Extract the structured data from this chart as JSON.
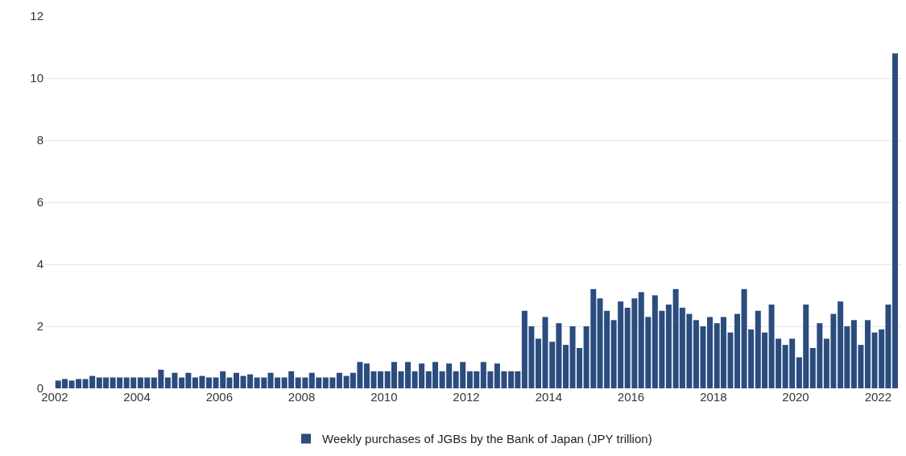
{
  "chart_data": {
    "type": "bar",
    "x": [
      "2002-02",
      "2002-04",
      "2002-06",
      "2002-08",
      "2002-10",
      "2002-12",
      "2003-02",
      "2003-04",
      "2003-06",
      "2003-08",
      "2003-10",
      "2003-12",
      "2004-02",
      "2004-04",
      "2004-06",
      "2004-08",
      "2004-10",
      "2004-12",
      "2005-02",
      "2005-04",
      "2005-06",
      "2005-08",
      "2005-10",
      "2005-12",
      "2006-02",
      "2006-04",
      "2006-06",
      "2006-08",
      "2006-10",
      "2006-12",
      "2007-02",
      "2007-04",
      "2007-06",
      "2007-08",
      "2007-10",
      "2007-12",
      "2008-02",
      "2008-04",
      "2008-06",
      "2008-08",
      "2008-10",
      "2008-12",
      "2009-02",
      "2009-04",
      "2009-06",
      "2009-08",
      "2009-10",
      "2009-12",
      "2010-02",
      "2010-04",
      "2010-06",
      "2010-08",
      "2010-10",
      "2010-12",
      "2011-02",
      "2011-04",
      "2011-06",
      "2011-08",
      "2011-10",
      "2011-12",
      "2012-02",
      "2012-04",
      "2012-06",
      "2012-08",
      "2012-10",
      "2012-12",
      "2013-02",
      "2013-04",
      "2013-06",
      "2013-08",
      "2013-10",
      "2013-12",
      "2014-02",
      "2014-04",
      "2014-06",
      "2014-08",
      "2014-10",
      "2014-12",
      "2015-02",
      "2015-04",
      "2015-06",
      "2015-08",
      "2015-10",
      "2015-12",
      "2016-02",
      "2016-04",
      "2016-06",
      "2016-08",
      "2016-10",
      "2016-12",
      "2017-02",
      "2017-04",
      "2017-06",
      "2017-08",
      "2017-10",
      "2017-12",
      "2018-02",
      "2018-04",
      "2018-06",
      "2018-08",
      "2018-10",
      "2018-12",
      "2019-02",
      "2019-04",
      "2019-06",
      "2019-08",
      "2019-10",
      "2019-12",
      "2020-02",
      "2020-04",
      "2020-06",
      "2020-08",
      "2020-10",
      "2020-12",
      "2021-02",
      "2021-04",
      "2021-06",
      "2021-08",
      "2021-10",
      "2021-12",
      "2022-02",
      "2022-04",
      "2022-06"
    ],
    "series": [
      {
        "name": "Weekly purchases of JGBs by the Bank of Japan (JPY trillion)",
        "color": "#2b4c7e",
        "values": [
          0.25,
          0.3,
          0.25,
          0.3,
          0.3,
          0.4,
          0.35,
          0.35,
          0.35,
          0.35,
          0.35,
          0.35,
          0.35,
          0.35,
          0.35,
          0.6,
          0.35,
          0.5,
          0.35,
          0.5,
          0.35,
          0.4,
          0.35,
          0.35,
          0.55,
          0.35,
          0.5,
          0.4,
          0.45,
          0.35,
          0.35,
          0.5,
          0.35,
          0.35,
          0.55,
          0.35,
          0.35,
          0.5,
          0.35,
          0.35,
          0.35,
          0.5,
          0.4,
          0.5,
          0.85,
          0.8,
          0.55,
          0.55,
          0.55,
          0.85,
          0.55,
          0.85,
          0.55,
          0.8,
          0.55,
          0.85,
          0.55,
          0.8,
          0.55,
          0.85,
          0.55,
          0.55,
          0.85,
          0.55,
          0.8,
          0.55,
          0.55,
          0.55,
          2.5,
          2.0,
          1.6,
          2.3,
          1.5,
          2.1,
          1.4,
          2.0,
          1.3,
          2.0,
          3.2,
          2.9,
          2.5,
          2.2,
          2.8,
          2.6,
          2.9,
          3.1,
          2.3,
          3.0,
          2.5,
          2.7,
          3.2,
          2.6,
          2.4,
          2.2,
          2.0,
          2.3,
          2.1,
          2.3,
          1.8,
          2.4,
          3.2,
          1.9,
          2.5,
          1.8,
          2.7,
          1.6,
          1.4,
          1.6,
          1.0,
          2.7,
          1.3,
          2.1,
          1.6,
          2.4,
          2.8,
          2.0,
          2.2,
          1.4,
          2.2,
          1.8,
          1.9,
          2.7,
          10.8
        ]
      }
    ],
    "xlim": [
      "2001-10",
      "2022-08"
    ],
    "xticks": [
      "2002",
      "2004",
      "2006",
      "2008",
      "2010",
      "2012",
      "2014",
      "2016",
      "2018",
      "2020",
      "2022"
    ],
    "ylim": [
      0,
      12
    ],
    "yticks": [
      0,
      2,
      4,
      6,
      8,
      10,
      12
    ],
    "grid": "y",
    "legend": "bottom"
  }
}
